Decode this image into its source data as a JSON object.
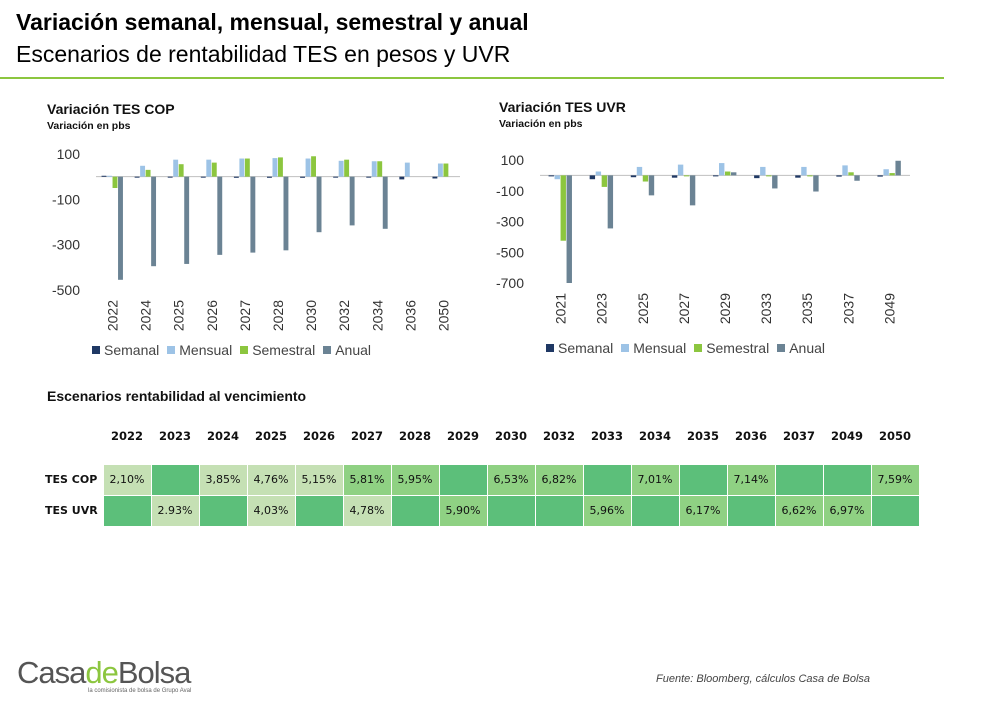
{
  "header": {
    "title": "Variación semanal, mensual, semestral y anual",
    "subtitle": "Escenarios de rentabilidad TES en pesos y UVR"
  },
  "colors": {
    "semanal": "#1f3864",
    "mensual": "#9dc3e6",
    "semestral": "#8cc63f",
    "anual": "#6b8394",
    "rule": "#8cc63f",
    "cell_light": "#c5e0b4",
    "cell_mid": "#8fd183",
    "cell_empty": "#5cbf7a"
  },
  "chart_data": [
    {
      "type": "bar",
      "title": "Variación TES COP",
      "subtitle": "Variación en pbs",
      "categories": [
        "2022",
        "2024",
        "2025",
        "2026",
        "2027",
        "2028",
        "2030",
        "2032",
        "2034",
        "2036",
        "2050"
      ],
      "ylim": [
        -500,
        100
      ],
      "yticks": [
        100,
        -100,
        -300,
        -500
      ],
      "legend": "bottom",
      "series": [
        {
          "name": "Semanal",
          "values": [
            4,
            -4,
            -3,
            -4,
            -5,
            -5,
            -5,
            -4,
            -4,
            -12,
            -8
          ]
        },
        {
          "name": "Mensual",
          "values": [
            4,
            48,
            75,
            75,
            80,
            82,
            80,
            70,
            68,
            62,
            58
          ]
        },
        {
          "name": "Semestral",
          "values": [
            -50,
            30,
            55,
            62,
            80,
            85,
            90,
            75,
            68,
            0,
            58
          ]
        },
        {
          "name": "Anual",
          "values": [
            -455,
            -395,
            -385,
            -345,
            -335,
            -325,
            -245,
            -215,
            -230,
            0,
            0
          ]
        }
      ]
    },
    {
      "type": "bar",
      "title": "Variación TES UVR",
      "subtitle": "Variación en pbs",
      "categories": [
        "2021",
        "2023",
        "2025",
        "2027",
        "2029",
        "2033",
        "2035",
        "2037",
        "2049"
      ],
      "ylim": [
        -700,
        100
      ],
      "yticks": [
        100,
        -100,
        -300,
        -500,
        -700
      ],
      "legend": "bottom",
      "series": [
        {
          "name": "Semanal",
          "values": [
            -5,
            -25,
            -12,
            -15,
            -5,
            -18,
            -15,
            -8,
            -8
          ]
        },
        {
          "name": "Mensual",
          "values": [
            -25,
            25,
            55,
            70,
            80,
            55,
            55,
            65,
            40
          ]
        },
        {
          "name": "Semestral",
          "values": [
            -425,
            -75,
            -40,
            -5,
            25,
            -5,
            -5,
            20,
            15
          ]
        },
        {
          "name": "Anual",
          "values": [
            -700,
            -345,
            -130,
            -195,
            20,
            -85,
            -105,
            -35,
            95
          ]
        }
      ]
    }
  ],
  "table": {
    "title": "Escenarios rentabilidad al vencimiento",
    "years": [
      "2022",
      "2023",
      "2024",
      "2025",
      "2026",
      "2027",
      "2028",
      "2029",
      "2030",
      "2032",
      "2033",
      "2034",
      "2035",
      "2036",
      "2037",
      "2049",
      "2050"
    ],
    "rows": [
      {
        "label": "TES COP",
        "cells": [
          {
            "v": "2,10%",
            "shade": "light"
          },
          {
            "v": "",
            "shade": "empty"
          },
          {
            "v": "3,85%",
            "shade": "light"
          },
          {
            "v": "4,76%",
            "shade": "light"
          },
          {
            "v": "5,15%",
            "shade": "light"
          },
          {
            "v": "5,81%",
            "shade": "mid"
          },
          {
            "v": "5,95%",
            "shade": "mid"
          },
          {
            "v": "",
            "shade": "empty"
          },
          {
            "v": "6,53%",
            "shade": "mid"
          },
          {
            "v": "6,82%",
            "shade": "mid"
          },
          {
            "v": "",
            "shade": "empty"
          },
          {
            "v": "7,01%",
            "shade": "mid"
          },
          {
            "v": "",
            "shade": "empty"
          },
          {
            "v": "7,14%",
            "shade": "mid"
          },
          {
            "v": "",
            "shade": "empty"
          },
          {
            "v": "",
            "shade": "empty"
          },
          {
            "v": "7,59%",
            "shade": "mid"
          }
        ]
      },
      {
        "label": "TES UVR",
        "cells": [
          {
            "v": "",
            "shade": "empty"
          },
          {
            "v": "2.93%",
            "shade": "light"
          },
          {
            "v": "",
            "shade": "empty"
          },
          {
            "v": "4,03%",
            "shade": "light"
          },
          {
            "v": "",
            "shade": "empty"
          },
          {
            "v": "4,78%",
            "shade": "light"
          },
          {
            "v": "",
            "shade": "empty"
          },
          {
            "v": "5,90%",
            "shade": "mid"
          },
          {
            "v": "",
            "shade": "empty"
          },
          {
            "v": "",
            "shade": "empty"
          },
          {
            "v": "5,96%",
            "shade": "mid"
          },
          {
            "v": "",
            "shade": "empty"
          },
          {
            "v": "6,17%",
            "shade": "mid"
          },
          {
            "v": "",
            "shade": "empty"
          },
          {
            "v": "6,62%",
            "shade": "mid"
          },
          {
            "v": "6,97%",
            "shade": "mid"
          },
          {
            "v": "",
            "shade": "empty"
          }
        ]
      }
    ]
  },
  "footer": {
    "logo_casa": "Casa",
    "logo_de": "de",
    "logo_bolsa": "Bolsa",
    "logo_tagline": "la comisionista de bolsa de Grupo Aval",
    "source": "Fuente: Bloomberg, cálculos Casa de Bolsa"
  }
}
